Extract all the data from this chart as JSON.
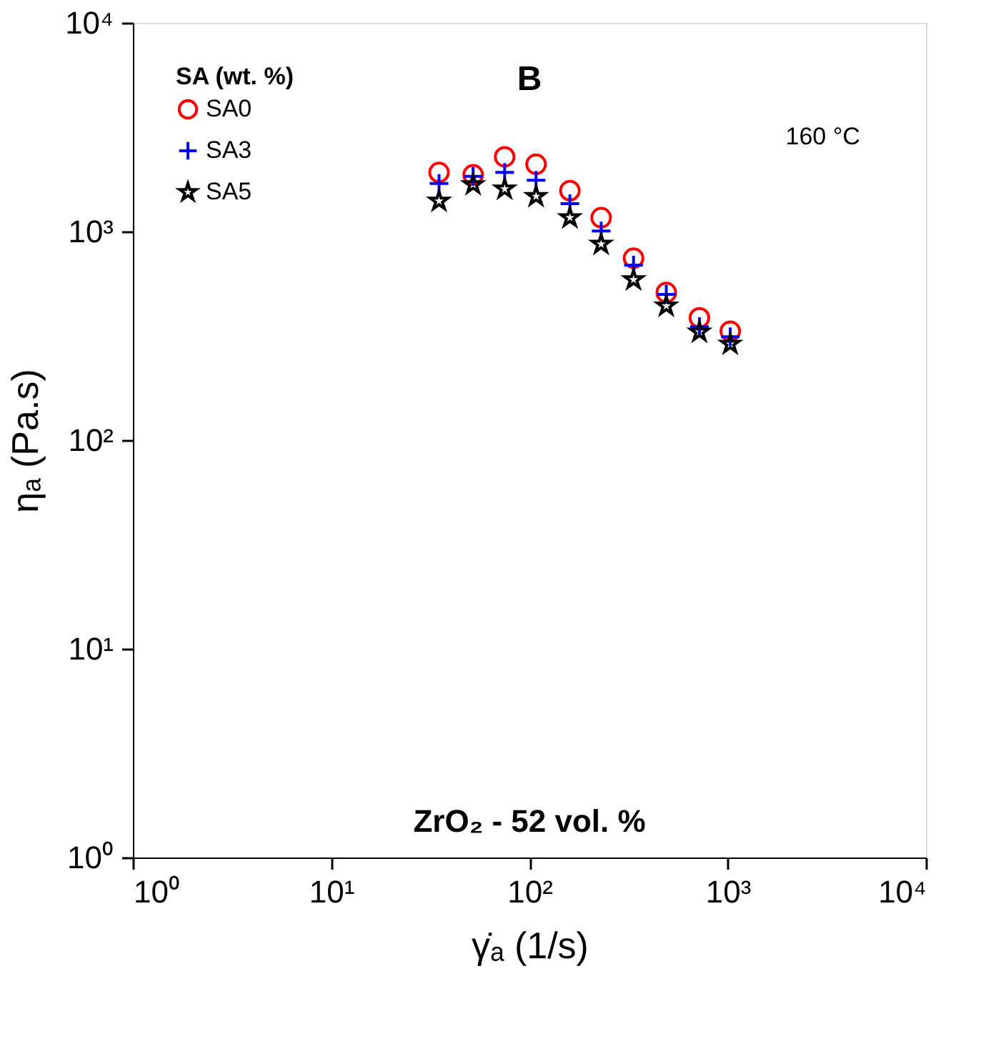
{
  "chart_data": {
    "type": "scatter",
    "xlabel": "γ̇ₐ (1/s)",
    "ylabel": "ηₐ (Pa.s)",
    "legend_title": "SA (wt. %)",
    "annotations": [
      "B",
      "160 °C",
      "ZrO₂ - 52 vol. %"
    ],
    "x": [
      35,
      52,
      75,
      108,
      160,
      230,
      335,
      490,
      720,
      1030
    ],
    "series": [
      {
        "name": "SA0",
        "color": "#ff0000",
        "marker": "circle",
        "values": [
          1920,
          1870,
          2280,
          2100,
          1570,
          1165,
          745,
          510,
          386,
          333
        ]
      },
      {
        "name": "SA3",
        "color": "#0000ff",
        "marker": "cross",
        "values": [
          1700,
          1840,
          1920,
          1760,
          1360,
          1005,
          690,
          500,
          350,
          313
        ]
      },
      {
        "name": "SA5",
        "color": "#000000",
        "marker": "star",
        "values": [
          1400,
          1680,
          1600,
          1475,
          1165,
          870,
          588,
          440,
          330,
          289
        ]
      }
    ],
    "log": "xy",
    "xlim": [
      1,
      10000
    ],
    "ylim": [
      1,
      10000
    ],
    "xticks": [
      {
        "value": 1,
        "label": "10⁰"
      },
      {
        "value": 10,
        "label": "10¹"
      },
      {
        "value": 100,
        "label": "10²"
      },
      {
        "value": 1000,
        "label": "10³"
      },
      {
        "value": 10000,
        "label": "10⁴"
      }
    ],
    "yticks": [
      {
        "value": 1,
        "label": "10⁰"
      },
      {
        "value": 10,
        "label": "10¹"
      },
      {
        "value": 100,
        "label": "10²"
      },
      {
        "value": 1000,
        "label": "10³"
      },
      {
        "value": 10000,
        "label": "10⁴"
      }
    ],
    "grid": false,
    "legend": "top left"
  }
}
